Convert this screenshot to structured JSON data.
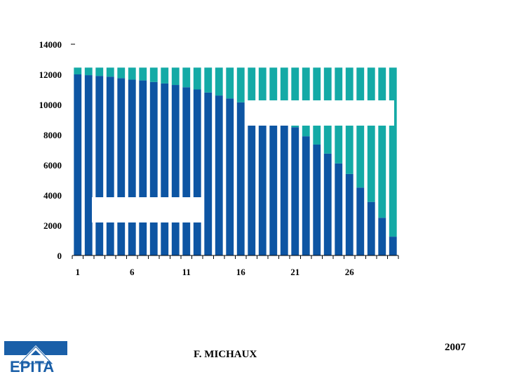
{
  "chart_data": {
    "type": "bar",
    "stacked": true,
    "categories": [
      1,
      2,
      3,
      4,
      5,
      6,
      7,
      8,
      9,
      10,
      11,
      12,
      13,
      14,
      15,
      16,
      17,
      18,
      19,
      20,
      21,
      22,
      23,
      24,
      25,
      26,
      27,
      28,
      29,
      30
    ],
    "x_tick_labels": [
      "1",
      "6",
      "11",
      "16",
      "21",
      "26"
    ],
    "y_tick_labels": [
      "0",
      "2000",
      "4000",
      "6000",
      "8000",
      "10000",
      "12000",
      "14000"
    ],
    "ylim": [
      0,
      14000
    ],
    "series": [
      {
        "values": [
          12000,
          11950,
          11900,
          11850,
          11750,
          11650,
          11600,
          11500,
          11400,
          11300,
          11150,
          11000,
          10800,
          10600,
          10400,
          10150,
          9900,
          9600,
          9300,
          8900,
          8500,
          7900,
          7350,
          6750,
          6100,
          5400,
          4500,
          3550,
          2500,
          1250
        ]
      },
      {
        "values": [
          450,
          500,
          550,
          600,
          700,
          800,
          850,
          950,
          1050,
          1150,
          1300,
          1450,
          1650,
          1850,
          2050,
          2300,
          2550,
          2850,
          3150,
          3550,
          3950,
          4550,
          5100,
          5700,
          6350,
          7050,
          7950,
          8900,
          9950,
          11200
        ]
      }
    ],
    "colors": {
      "series1": "#0d55a3",
      "series2": "#14aaa6",
      "bar_gap": "#ffffff"
    },
    "legend": "none",
    "grid": false
  },
  "footer": {
    "author": "F. MICHAUX",
    "year": "2007",
    "logo_text": "EPITA"
  }
}
